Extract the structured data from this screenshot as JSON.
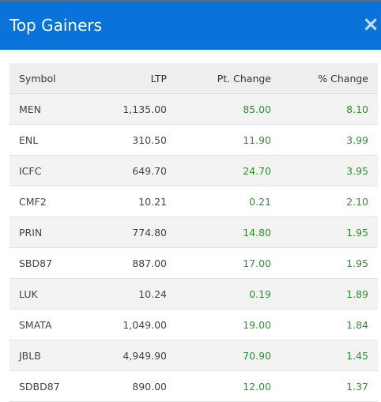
{
  "header": {
    "title": "Top Gainers",
    "close": "×"
  },
  "table": {
    "columns": [
      "Symbol",
      "LTP",
      "Pt. Change",
      "% Change"
    ],
    "rows": [
      [
        "MEN",
        "1,135.00",
        "85.00",
        "8.10"
      ],
      [
        "ENL",
        "310.50",
        "11.90",
        "3.99"
      ],
      [
        "ICFC",
        "649.70",
        "24.70",
        "3.95"
      ],
      [
        "CMF2",
        "10.21",
        "0.21",
        "2.10"
      ],
      [
        "PRIN",
        "774.80",
        "14.80",
        "1.95"
      ],
      [
        "SBD87",
        "887.00",
        "17.00",
        "1.95"
      ],
      [
        "LUK",
        "10.24",
        "0.19",
        "1.89"
      ],
      [
        "SMATA",
        "1,049.00",
        "19.00",
        "1.84"
      ],
      [
        "JBLB",
        "4,949.90",
        "70.90",
        "1.45"
      ],
      [
        "SDBD87",
        "890.00",
        "12.00",
        "1.37"
      ]
    ]
  }
}
